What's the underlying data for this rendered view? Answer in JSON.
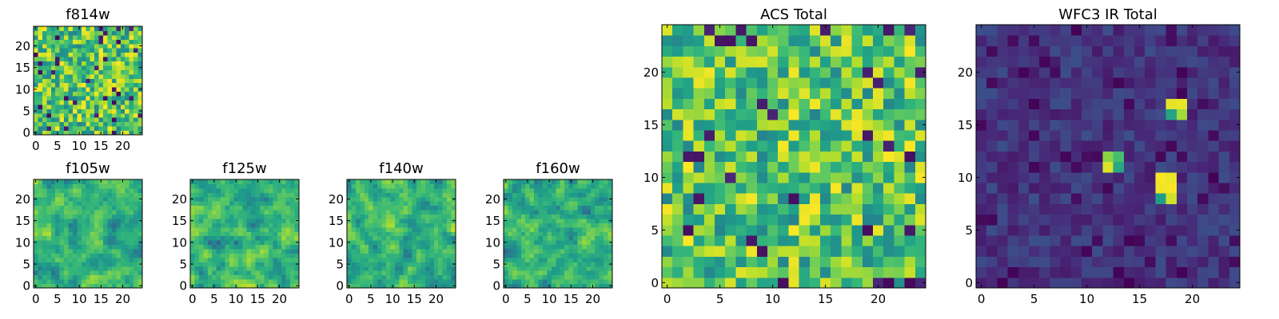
{
  "chart_data": [
    {
      "id": "f814w",
      "type": "heatmap",
      "title": "f814w",
      "grid": 25,
      "xlim": [
        -0.5,
        24.5
      ],
      "ylim": [
        -0.5,
        24.5
      ],
      "x_ticks": [
        0,
        5,
        10,
        15,
        20
      ],
      "y_ticks": [
        0,
        5,
        10,
        15,
        20
      ],
      "colormap": "viridis",
      "value_range": [
        0,
        1
      ],
      "profile": "acs",
      "seed": 11
    },
    {
      "id": "f105w",
      "type": "heatmap",
      "title": "f105w",
      "grid": 25,
      "xlim": [
        -0.5,
        24.5
      ],
      "ylim": [
        -0.5,
        24.5
      ],
      "x_ticks": [
        0,
        5,
        10,
        15,
        20
      ],
      "y_ticks": [
        0,
        5,
        10,
        15,
        20
      ],
      "colormap": "viridis",
      "value_range": [
        0,
        1
      ],
      "profile": "ir_band",
      "seed": 23
    },
    {
      "id": "f125w",
      "type": "heatmap",
      "title": "f125w",
      "grid": 25,
      "xlim": [
        -0.5,
        24.5
      ],
      "ylim": [
        -0.5,
        24.5
      ],
      "x_ticks": [
        0,
        5,
        10,
        15,
        20
      ],
      "y_ticks": [
        0,
        5,
        10,
        15,
        20
      ],
      "colormap": "viridis",
      "value_range": [
        0,
        1
      ],
      "profile": "ir_band",
      "seed": 37
    },
    {
      "id": "f140w",
      "type": "heatmap",
      "title": "f140w",
      "grid": 25,
      "xlim": [
        -0.5,
        24.5
      ],
      "ylim": [
        -0.5,
        24.5
      ],
      "x_ticks": [
        0,
        5,
        10,
        15,
        20
      ],
      "y_ticks": [
        0,
        5,
        10,
        15,
        20
      ],
      "colormap": "viridis",
      "value_range": [
        0,
        1
      ],
      "profile": "ir_band",
      "seed": 51
    },
    {
      "id": "f160w",
      "type": "heatmap",
      "title": "f160w",
      "grid": 25,
      "xlim": [
        -0.5,
        24.5
      ],
      "ylim": [
        -0.5,
        24.5
      ],
      "x_ticks": [
        0,
        5,
        10,
        15,
        20
      ],
      "y_ticks": [
        0,
        5,
        10,
        15,
        20
      ],
      "colormap": "viridis",
      "value_range": [
        0,
        1
      ],
      "profile": "ir_band",
      "seed": 67
    },
    {
      "id": "acs_total",
      "type": "heatmap",
      "title": "ACS Total",
      "grid": 25,
      "xlim": [
        -0.5,
        24.5
      ],
      "ylim": [
        -0.5,
        24.5
      ],
      "x_ticks": [
        0,
        5,
        10,
        15,
        20
      ],
      "y_ticks": [
        0,
        5,
        10,
        15,
        20
      ],
      "colormap": "viridis",
      "value_range": [
        0,
        1
      ],
      "profile": "acs",
      "seed": 83
    },
    {
      "id": "wfc3_ir_total",
      "type": "heatmap",
      "title": "WFC3 IR Total",
      "grid": 25,
      "xlim": [
        -0.5,
        24.5
      ],
      "ylim": [
        -0.5,
        24.5
      ],
      "x_ticks": [
        0,
        5,
        10,
        15,
        20
      ],
      "y_ticks": [
        0,
        5,
        10,
        15,
        20
      ],
      "colormap": "viridis",
      "value_range": [
        0,
        1
      ],
      "profile": "ir_total",
      "seed": 97,
      "bright_sources": [
        {
          "x": 12,
          "y": 11,
          "value": 0.95
        },
        {
          "x": 12,
          "y": 12,
          "value": 0.82
        },
        {
          "x": 13,
          "y": 12,
          "value": 0.7
        },
        {
          "x": 13,
          "y": 11,
          "value": 0.6
        },
        {
          "x": 17,
          "y": 9,
          "value": 0.98
        },
        {
          "x": 18,
          "y": 9,
          "value": 0.99
        },
        {
          "x": 17,
          "y": 10,
          "value": 0.99
        },
        {
          "x": 18,
          "y": 10,
          "value": 0.97
        },
        {
          "x": 17,
          "y": 8,
          "value": 0.55
        },
        {
          "x": 18,
          "y": 8,
          "value": 0.93
        },
        {
          "x": 18,
          "y": 17,
          "value": 0.96
        },
        {
          "x": 19,
          "y": 17,
          "value": 0.97
        },
        {
          "x": 19,
          "y": 16,
          "value": 0.86
        },
        {
          "x": 18,
          "y": 16,
          "value": 0.58
        }
      ]
    }
  ]
}
